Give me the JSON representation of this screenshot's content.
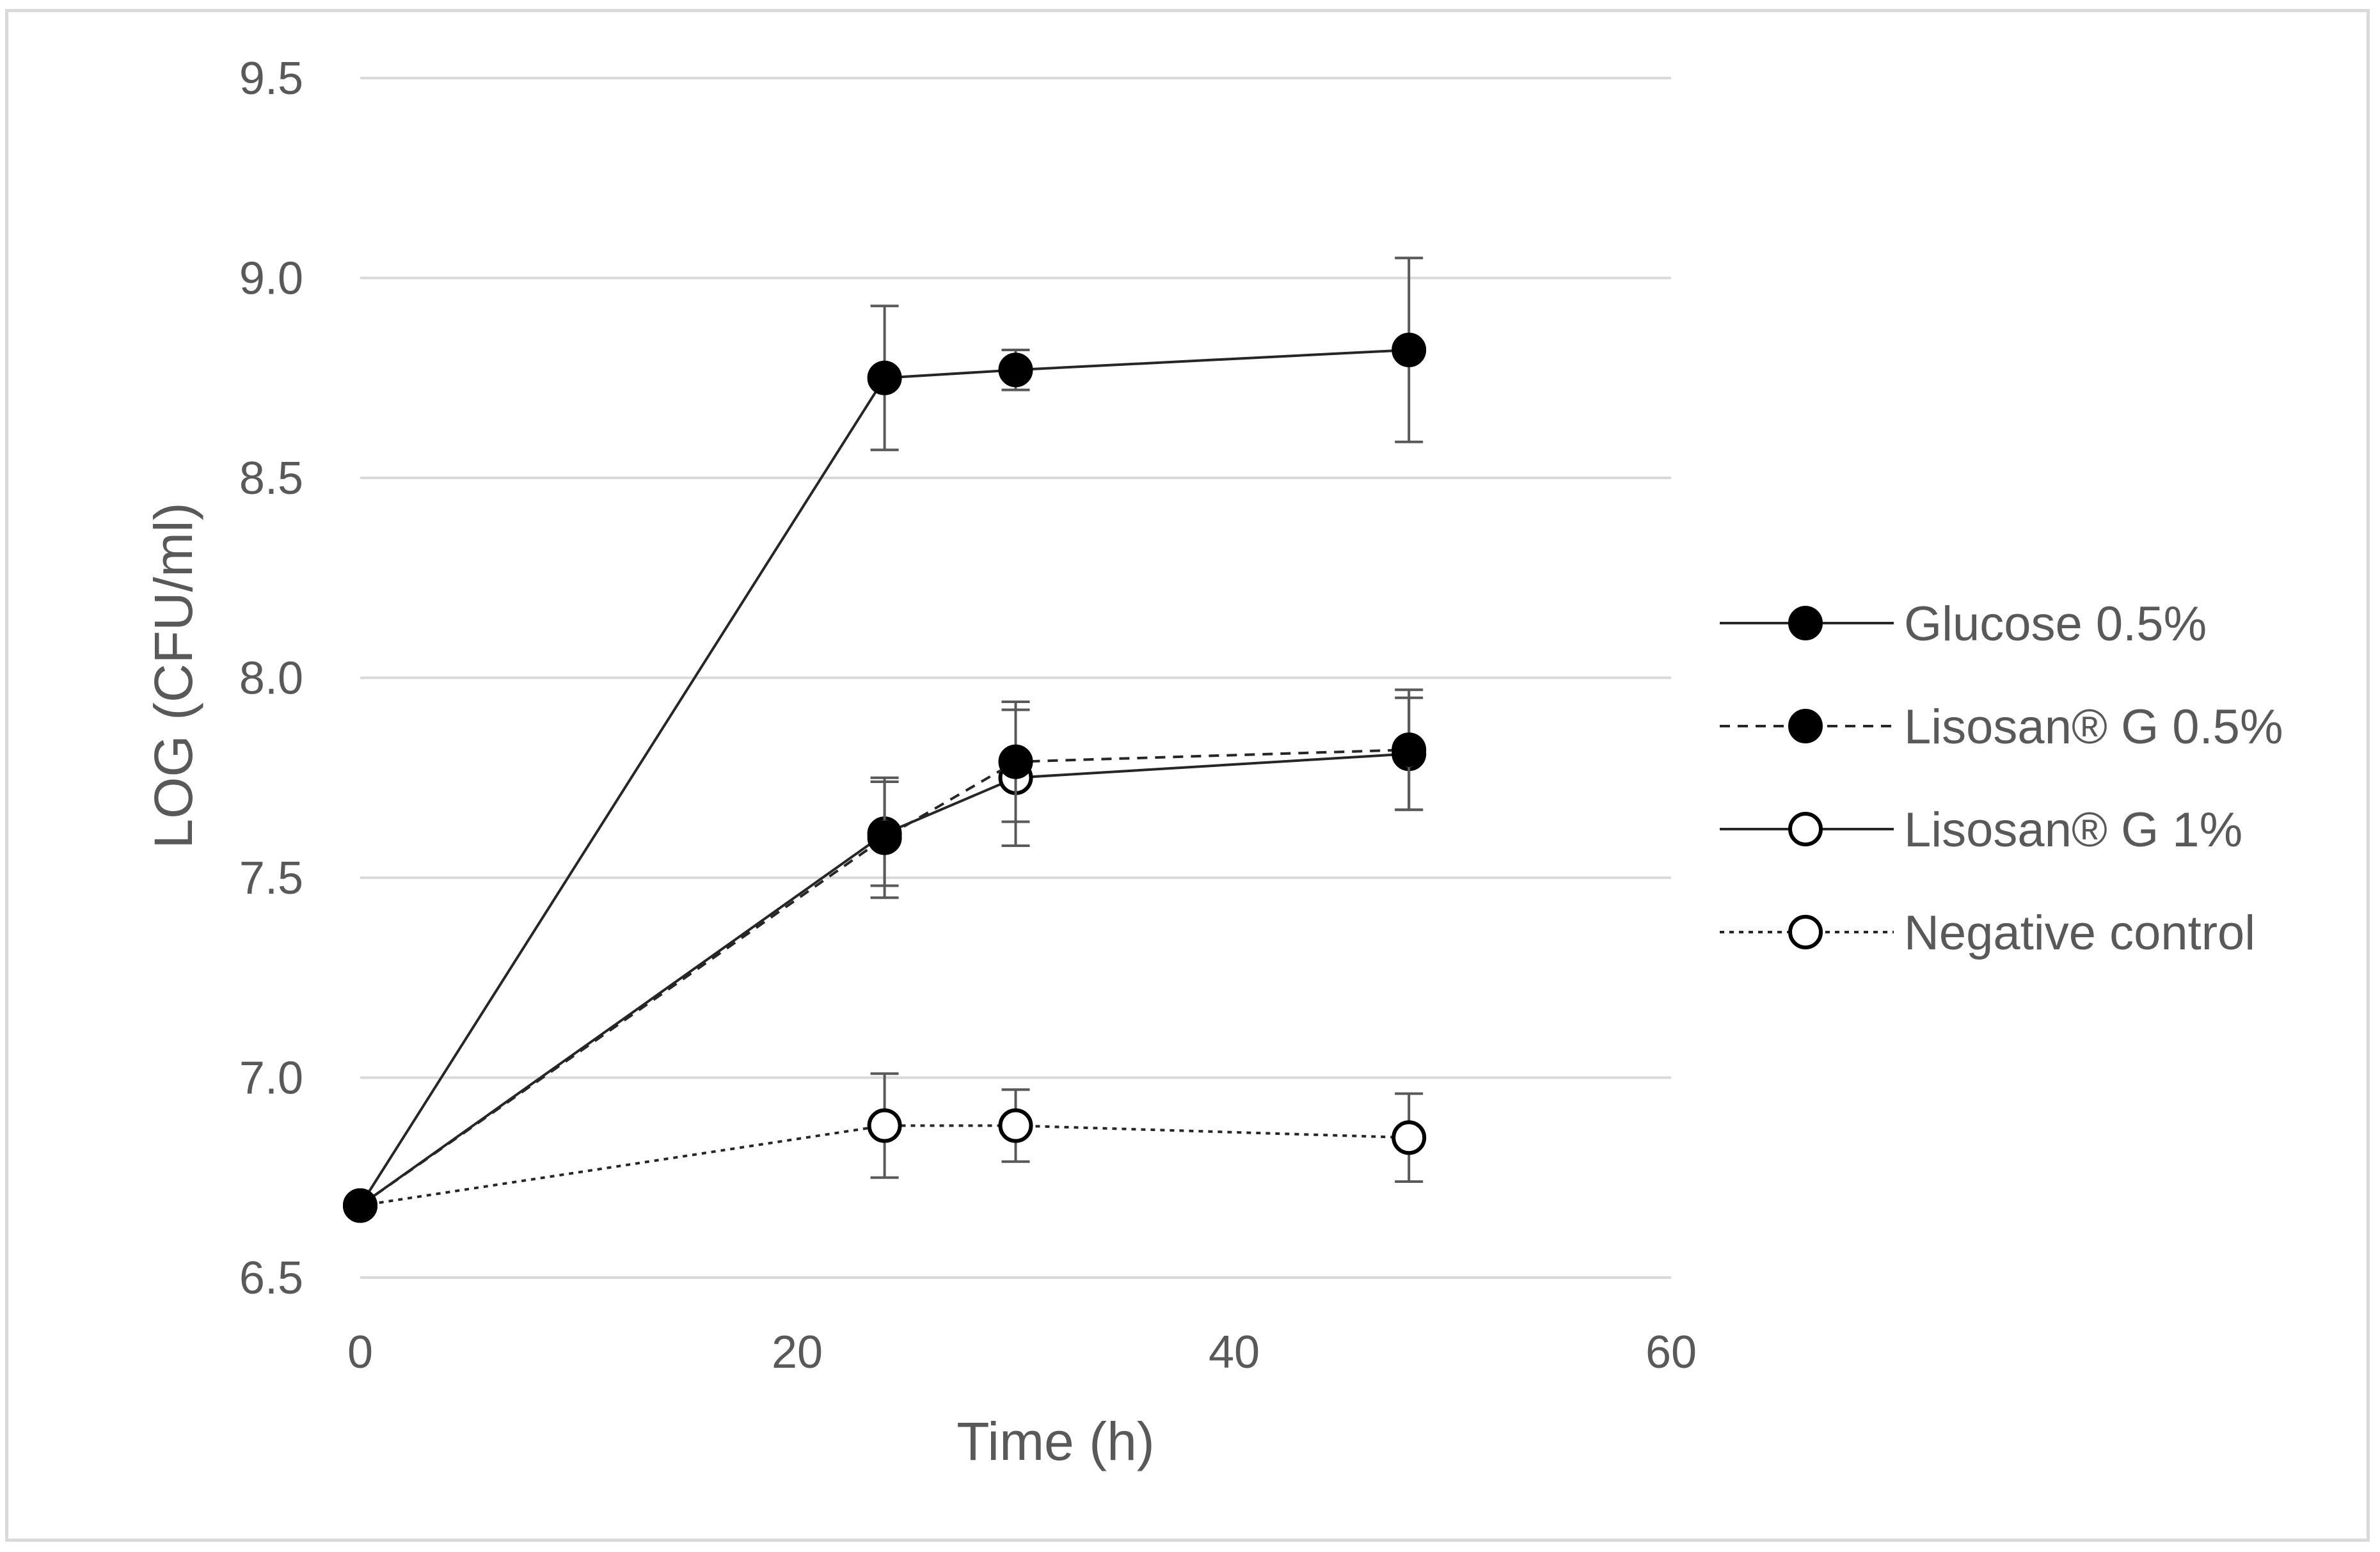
{
  "chart_data": {
    "type": "line",
    "title": "",
    "xlabel": "Time (h)",
    "ylabel": "LOG (CFU/ml)",
    "xlim": [
      0,
      60
    ],
    "ylim": [
      6.5,
      9.5
    ],
    "x_ticks": [
      0,
      20,
      40,
      60
    ],
    "x_tick_labels": [
      "0",
      "20",
      "40",
      "60"
    ],
    "y_ticks": [
      6.5,
      7.0,
      7.5,
      8.0,
      8.5,
      9.0,
      9.5
    ],
    "y_tick_labels": [
      "6.5",
      "7.0",
      "7.5",
      "8.0",
      "8.5",
      "9.0",
      "9.5"
    ],
    "grid": "horizontal",
    "legend_position": "right",
    "x": [
      0,
      24,
      30,
      48
    ],
    "series": [
      {
        "name": "Glucose 0.5%",
        "values": [
          6.68,
          8.75,
          8.77,
          8.82
        ],
        "errors": [
          0.0,
          0.18,
          0.05,
          0.23
        ],
        "line_style": "solid",
        "marker": "filled-circle"
      },
      {
        "name": "Lisosan® G 0.5%",
        "values": [
          6.68,
          7.6,
          7.79,
          7.82
        ],
        "errors": [
          0.0,
          0.15,
          0.15,
          0.15
        ],
        "line_style": "dashed",
        "marker": "filled-circle"
      },
      {
        "name": "Lisosan® G 1%",
        "values": [
          6.68,
          7.61,
          7.75,
          7.81
        ],
        "errors": [
          0.0,
          0.13,
          0.17,
          0.14
        ],
        "line_style": "solid",
        "marker": "open-circle"
      },
      {
        "name": "Negative control",
        "values": [
          6.68,
          6.88,
          6.88,
          6.85
        ],
        "errors": [
          0.0,
          0.13,
          0.09,
          0.11
        ],
        "line_style": "dotted",
        "marker": "open-circle"
      }
    ]
  }
}
